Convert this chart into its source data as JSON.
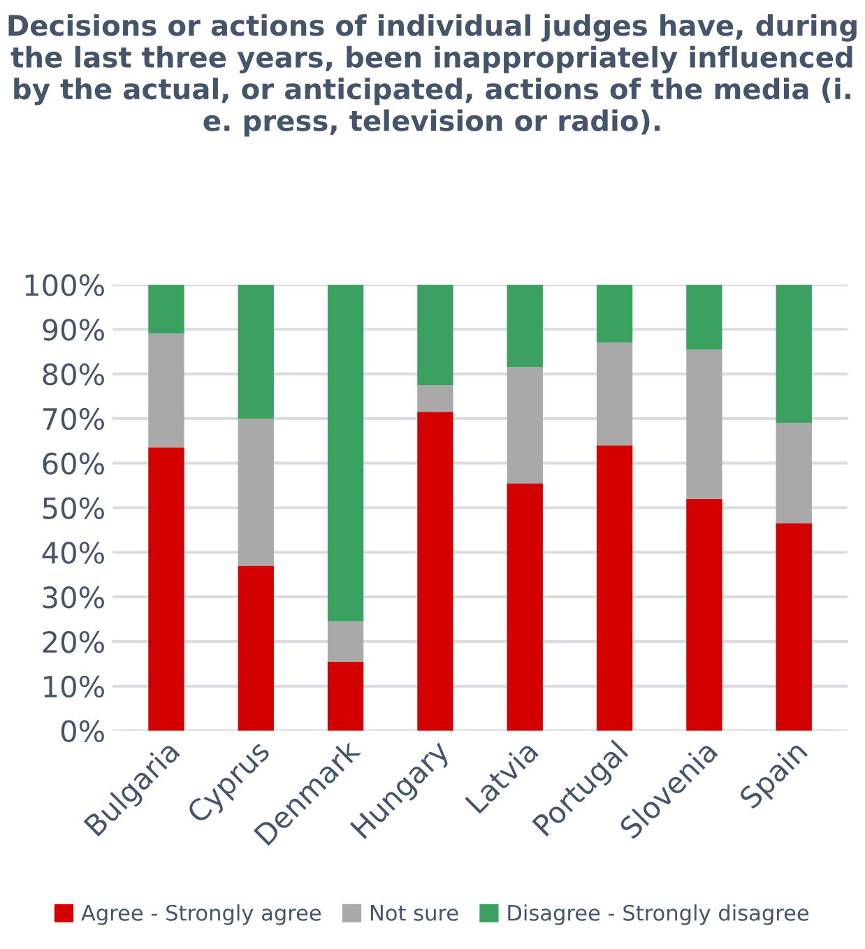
{
  "chart_data": {
    "type": "bar",
    "stacked": true,
    "title": "Decisions or actions of individual judges have, during the last three years, been inappropriately influenced by the actual, or anticipated, actions of the media (i. e. press, television or radio).",
    "categories": [
      "Bulgaria",
      "Cyprus",
      "Denmark",
      "Hungary",
      "Latvia",
      "Portugal",
      "Slovenia",
      "Spain"
    ],
    "series": [
      {
        "name": "Agree - Strongly agree",
        "color": "#d40000",
        "values": [
          63.5,
          37,
          15.5,
          71.5,
          55.5,
          64,
          52,
          46.5
        ]
      },
      {
        "name": "Not sure",
        "color": "#a9a9a9",
        "values": [
          25.5,
          33,
          9,
          6,
          26,
          23,
          33.5,
          22.5
        ]
      },
      {
        "name": "Disagree - Strongly disagree",
        "color": "#3ba160",
        "values": [
          11,
          30,
          75.5,
          22.5,
          18.5,
          13,
          14.5,
          31
        ]
      }
    ],
    "ylim": [
      0,
      100
    ],
    "yticks": [
      {
        "value": 0,
        "label": "0%"
      },
      {
        "value": 10,
        "label": "10%"
      },
      {
        "value": 20,
        "label": "20%"
      },
      {
        "value": 30,
        "label": "30%"
      },
      {
        "value": 40,
        "label": "40%"
      },
      {
        "value": 50,
        "label": "50%"
      },
      {
        "value": 60,
        "label": "60%"
      },
      {
        "value": 70,
        "label": "70%"
      },
      {
        "value": 80,
        "label": "80%"
      },
      {
        "value": 90,
        "label": "90%"
      },
      {
        "value": 100,
        "label": "100%"
      }
    ],
    "grid": "y",
    "legend": "bottom"
  }
}
